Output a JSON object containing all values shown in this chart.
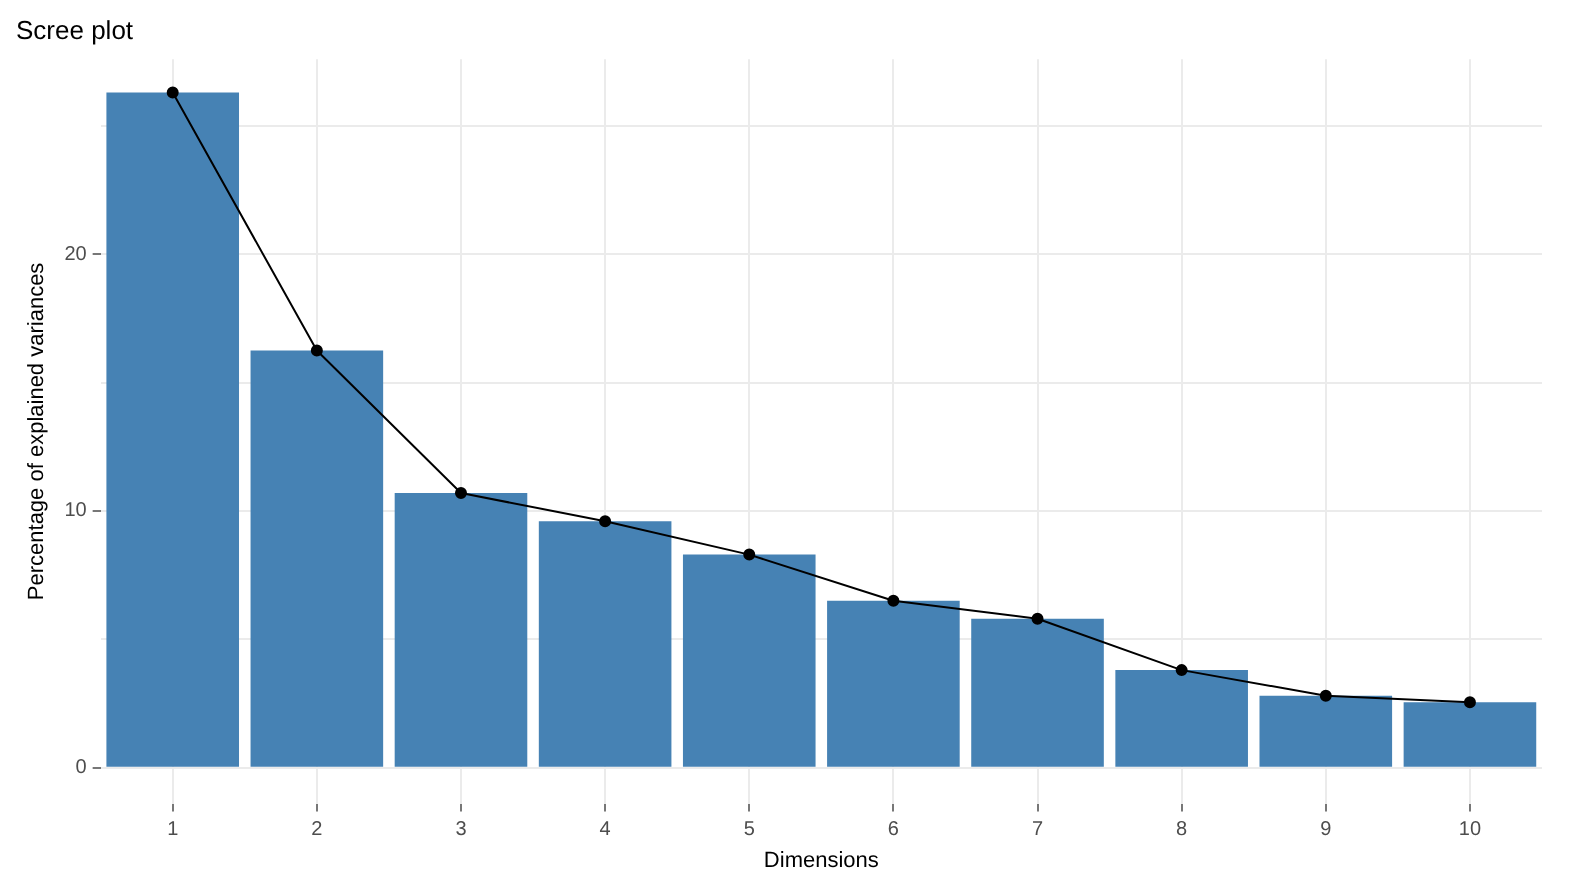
{
  "chart_data": {
    "type": "bar",
    "title": "Scree plot",
    "xlabel": "Dimensions",
    "ylabel": "Percentage of explained variances",
    "categories": [
      "1",
      "2",
      "3",
      "4",
      "5",
      "6",
      "7",
      "8",
      "9",
      "10"
    ],
    "series": [
      {
        "color": "#4682b4",
        "values": [
          26.3,
          16.25,
          10.7,
          9.6,
          8.3,
          6.5,
          5.8,
          3.8,
          2.8,
          2.55
        ]
      },
      {
        "type": "line",
        "color": "#000000",
        "marker": "circle",
        "values": [
          26.3,
          16.25,
          10.7,
          9.6,
          8.3,
          6.5,
          5.8,
          3.8,
          2.8,
          2.55
        ]
      }
    ],
    "ylim": [
      -1.4,
      27.6
    ],
    "yticks": [
      0,
      {
        "value": 5,
        "label": null
      },
      10,
      {
        "value": 15,
        "label": null
      },
      20,
      {
        "value": 25,
        "label": null
      }
    ],
    "grid": true,
    "legend": false
  }
}
